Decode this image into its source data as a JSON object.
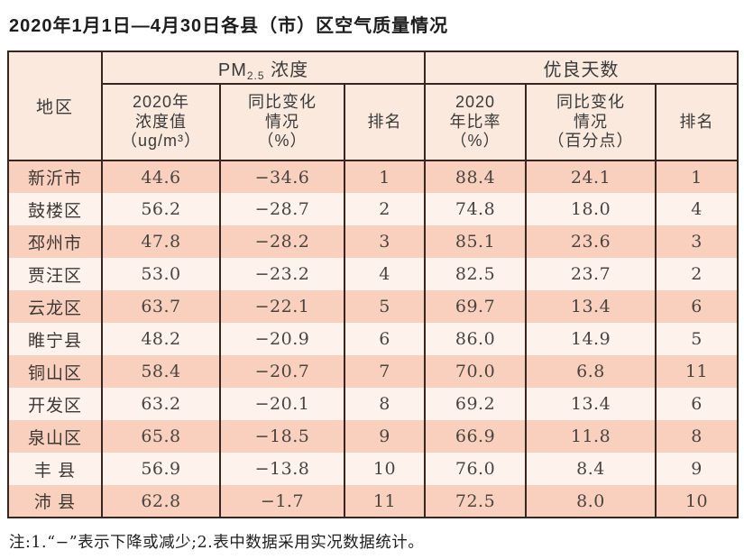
{
  "title": "2020年1月1日—4月30日各县（市）区空气质量情况",
  "table": {
    "region_header": "地区",
    "group_pm": {
      "prefix": "PM",
      "sub": "2.5",
      "suffix": " 浓度"
    },
    "group_days": "优良天数",
    "cols": {
      "pm_value": [
        "2020年",
        "浓度值",
        "（ug/m³）"
      ],
      "pm_change": [
        "同比变化",
        "情况",
        "（%）"
      ],
      "pm_rank": "排名",
      "days_ratio": [
        "2020",
        "年比率",
        "（%）"
      ],
      "days_change": [
        "同比变化",
        "情况",
        "（百分点）"
      ],
      "days_rank": "排名"
    },
    "rows": [
      {
        "region": "新沂市",
        "pm_value": "44.6",
        "pm_change": "−34.6",
        "pm_rank": "1",
        "days_ratio": "88.4",
        "days_change": "24.1",
        "days_rank": "1"
      },
      {
        "region": "鼓楼区",
        "pm_value": "56.2",
        "pm_change": "−28.7",
        "pm_rank": "2",
        "days_ratio": "74.8",
        "days_change": "18.0",
        "days_rank": "4"
      },
      {
        "region": "邳州市",
        "pm_value": "47.8",
        "pm_change": "−28.2",
        "pm_rank": "3",
        "days_ratio": "85.1",
        "days_change": "23.6",
        "days_rank": "3"
      },
      {
        "region": "贾汪区",
        "pm_value": "53.0",
        "pm_change": "−23.2",
        "pm_rank": "4",
        "days_ratio": "82.5",
        "days_change": "23.7",
        "days_rank": "2"
      },
      {
        "region": "云龙区",
        "pm_value": "63.7",
        "pm_change": "−22.1",
        "pm_rank": "5",
        "days_ratio": "69.7",
        "days_change": "13.4",
        "days_rank": "6"
      },
      {
        "region": "睢宁县",
        "pm_value": "48.2",
        "pm_change": "−20.9",
        "pm_rank": "6",
        "days_ratio": "86.0",
        "days_change": "14.9",
        "days_rank": "5"
      },
      {
        "region": "铜山区",
        "pm_value": "58.4",
        "pm_change": "−20.7",
        "pm_rank": "7",
        "days_ratio": "70.0",
        "days_change": "6.8",
        "days_rank": "11"
      },
      {
        "region": "开发区",
        "pm_value": "63.2",
        "pm_change": "−20.1",
        "pm_rank": "8",
        "days_ratio": "69.2",
        "days_change": "13.4",
        "days_rank": "6"
      },
      {
        "region": "泉山区",
        "pm_value": "65.8",
        "pm_change": "−18.5",
        "pm_rank": "9",
        "days_ratio": "66.9",
        "days_change": "11.8",
        "days_rank": "8"
      },
      {
        "region": "丰 县",
        "pm_value": "56.9",
        "pm_change": "−13.8",
        "pm_rank": "10",
        "days_ratio": "76.0",
        "days_change": "8.4",
        "days_rank": "9"
      },
      {
        "region": "沛 县",
        "pm_value": "62.8",
        "pm_change": "−1.7",
        "pm_rank": "11",
        "days_ratio": "72.5",
        "days_change": "8.0",
        "days_rank": "10"
      }
    ]
  },
  "note": "注:1.“−”表示下降或减少;2.表中数据采用实况数据统计。",
  "colors": {
    "border": "#38251e",
    "header_bg": "#fbe9dd",
    "row_odd_bg": "#f9d0bd",
    "row_even_bg": "#fdf2ec"
  }
}
